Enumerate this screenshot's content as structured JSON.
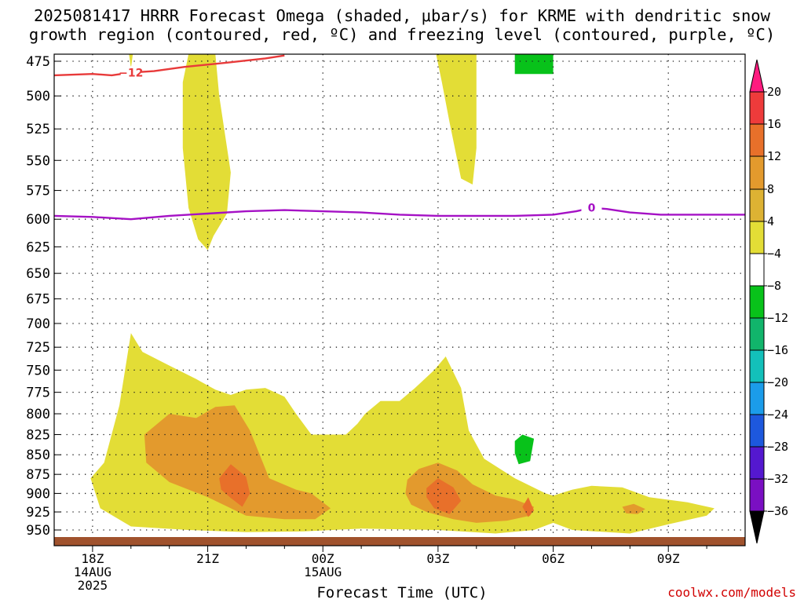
{
  "chart_data": {
    "type": "heatmap",
    "title": "2025081417 HRRR Forecast Omega (shaded, μbar/s) for KRME with dendritic snow\ngrowth region (contoured, red, ºC) and freezing level (contoured, purple, ºC)",
    "xlabel": "Forecast Time (UTC)",
    "ylabel": "",
    "credit": "coolwx.com/models",
    "y_ticks": [
      475,
      500,
      525,
      550,
      575,
      600,
      625,
      650,
      675,
      700,
      725,
      750,
      775,
      800,
      825,
      850,
      875,
      900,
      925,
      950
    ],
    "ylim": [
      965,
      470
    ],
    "y_scale": "log-pressure",
    "x_ticks": [
      {
        "hours": 1,
        "label": "18Z",
        "date": "14AUG",
        "year": "2025"
      },
      {
        "hours": 4,
        "label": "21Z",
        "date": "",
        "year": ""
      },
      {
        "hours": 7,
        "label": "00Z",
        "date": "15AUG",
        "year": ""
      },
      {
        "hours": 10,
        "label": "03Z",
        "date": "",
        "year": ""
      },
      {
        "hours": 13,
        "label": "06Z",
        "date": "",
        "year": ""
      },
      {
        "hours": 16,
        "label": "09Z",
        "date": "",
        "year": ""
      }
    ],
    "xlim": [
      0,
      18
    ],
    "grid": true,
    "colorbar": {
      "labels": [
        "20",
        "16",
        "12",
        "8",
        "4",
        "−4",
        "−8",
        "−12",
        "−16",
        "−20",
        "−24",
        "−28",
        "−32",
        "−36"
      ],
      "levels": [
        20,
        16,
        12,
        8,
        4,
        -4,
        -8,
        -12,
        -16,
        -20,
        -24,
        -28,
        -32,
        -36
      ],
      "colors": [
        "#ff1b7f",
        "#ee3b3b",
        "#e8702a",
        "#e39a2d",
        "#ddb233",
        "#e3dd36",
        "#ffffff",
        "#08c21a",
        "#11b56b",
        "#13c0ba",
        "#1b9cea",
        "#1d58dd",
        "#5418cf",
        "#7a0fc2",
        "#a30bc8",
        "#a7a7a7",
        "#000000"
      ]
    },
    "shading": [
      {
        "level": "4 to 8",
        "color": "#e3dd36",
        "regions": [
          {
            "points": [
              [
                0.95,
                880
              ],
              [
                1.3,
                860
              ],
              [
                1.7,
                790
              ],
              [
                2.0,
                710
              ],
              [
                2.3,
                730
              ],
              [
                3.0,
                745
              ],
              [
                3.7,
                760
              ],
              [
                4.2,
                772
              ],
              [
                4.6,
                778
              ],
              [
                5.0,
                772
              ],
              [
                5.5,
                770
              ],
              [
                6.0,
                780
              ],
              [
                6.3,
                800
              ],
              [
                6.7,
                825
              ],
              [
                7.6,
                825
              ],
              [
                7.9,
                812
              ],
              [
                8.1,
                800
              ],
              [
                8.5,
                785
              ],
              [
                9.0,
                785
              ],
              [
                9.4,
                770
              ],
              [
                9.9,
                750
              ],
              [
                10.2,
                735
              ],
              [
                10.6,
                770
              ],
              [
                10.8,
                820
              ],
              [
                11.2,
                855
              ],
              [
                12.0,
                880
              ],
              [
                12.8,
                900
              ],
              [
                13.0,
                903
              ],
              [
                13.5,
                895
              ],
              [
                14.0,
                890
              ],
              [
                14.8,
                892
              ],
              [
                15.5,
                905
              ],
              [
                16.5,
                912
              ],
              [
                17.2,
                920
              ],
              [
                17.0,
                930
              ],
              [
                16.0,
                942
              ],
              [
                15.0,
                955
              ],
              [
                13.5,
                950
              ],
              [
                13.0,
                940
              ],
              [
                12.5,
                950
              ],
              [
                11.5,
                955
              ],
              [
                10.0,
                950
              ],
              [
                8.0,
                948
              ],
              [
                6.5,
                952
              ],
              [
                5.0,
                953
              ],
              [
                3.5,
                950
              ],
              [
                2.0,
                945
              ],
              [
                1.2,
                920
              ]
            ]
          },
          {
            "points": [
              [
                3.35,
                490
              ],
              [
                3.5,
                470
              ],
              [
                4.2,
                470
              ],
              [
                4.3,
                500
              ],
              [
                4.6,
                560
              ],
              [
                4.5,
                595
              ],
              [
                4.15,
                615
              ],
              [
                4.0,
                628
              ],
              [
                3.75,
                618
              ],
              [
                3.5,
                590
              ],
              [
                3.35,
                540
              ]
            ]
          },
          {
            "points": [
              [
                9.95,
                470
              ],
              [
                11.0,
                470
              ],
              [
                11.0,
                500
              ],
              [
                11.0,
                540
              ],
              [
                10.9,
                570
              ],
              [
                10.6,
                565
              ],
              [
                10.3,
                520
              ],
              [
                10.1,
                490
              ]
            ]
          },
          {
            "points": [
              [
                1.95,
                470
              ],
              [
                2.05,
                470
              ],
              [
                2.0,
                480
              ]
            ]
          }
        ]
      },
      {
        "level": "8 to 12",
        "color": "#e39a2d",
        "regions": [
          {
            "points": [
              [
                2.35,
                825
              ],
              [
                3.0,
                800
              ],
              [
                3.7,
                805
              ],
              [
                4.2,
                792
              ],
              [
                4.7,
                790
              ],
              [
                5.1,
                820
              ],
              [
                5.6,
                880
              ],
              [
                6.3,
                895
              ],
              [
                6.7,
                900
              ],
              [
                7.2,
                920
              ],
              [
                6.8,
                935
              ],
              [
                6.0,
                935
              ],
              [
                5.0,
                930
              ],
              [
                4.0,
                905
              ],
              [
                3.0,
                885
              ],
              [
                2.4,
                860
              ]
            ]
          },
          {
            "points": [
              [
                9.2,
                882
              ],
              [
                9.5,
                868
              ],
              [
                10.0,
                860
              ],
              [
                10.5,
                870
              ],
              [
                10.9,
                888
              ],
              [
                11.5,
                903
              ],
              [
                12.0,
                908
              ],
              [
                12.5,
                918
              ],
              [
                12.4,
                930
              ],
              [
                11.8,
                937
              ],
              [
                11.0,
                940
              ],
              [
                10.4,
                935
              ],
              [
                9.7,
                925
              ],
              [
                9.3,
                915
              ],
              [
                9.15,
                900
              ]
            ]
          },
          {
            "points": [
              [
                14.8,
                918
              ],
              [
                15.1,
                914
              ],
              [
                15.4,
                921
              ],
              [
                15.2,
                928
              ],
              [
                14.9,
                927
              ]
            ]
          }
        ]
      },
      {
        "level": "12 to 16",
        "color": "#e8702a",
        "regions": [
          {
            "points": [
              [
                4.3,
                880
              ],
              [
                4.6,
                862
              ],
              [
                5.0,
                878
              ],
              [
                5.1,
                900
              ],
              [
                4.9,
                918
              ],
              [
                4.6,
                906
              ],
              [
                4.35,
                895
              ]
            ]
          },
          {
            "points": [
              [
                9.7,
                893
              ],
              [
                10.0,
                880
              ],
              [
                10.4,
                892
              ],
              [
                10.6,
                910
              ],
              [
                10.3,
                928
              ],
              [
                9.9,
                920
              ],
              [
                9.7,
                905
              ]
            ]
          },
          {
            "points": [
              [
                12.2,
                918
              ],
              [
                12.35,
                905
              ],
              [
                12.5,
                923
              ],
              [
                12.35,
                932
              ]
            ]
          }
        ]
      },
      {
        "level": "-8 to -4",
        "color": "#08c21a",
        "regions": [
          {
            "points": [
              [
                12.0,
                470
              ],
              [
                13.0,
                470
              ],
              [
                13.0,
                484
              ],
              [
                12.0,
                484
              ]
            ]
          },
          {
            "points": [
              [
                12.0,
                833
              ],
              [
                12.2,
                825
              ],
              [
                12.5,
                830
              ],
              [
                12.4,
                858
              ],
              [
                12.1,
                862
              ],
              [
                12.0,
                848
              ]
            ]
          }
        ]
      }
    ],
    "contours": [
      {
        "name": "dendritic snow growth region",
        "color": "#e83a3a",
        "label": "−12",
        "label_at": [
          2.0,
          483
        ],
        "points": [
          [
            0,
            485
          ],
          [
            1.0,
            484
          ],
          [
            1.5,
            485
          ],
          [
            2.0,
            483
          ],
          [
            2.6,
            482
          ],
          [
            3.4,
            479
          ],
          [
            4.5,
            476
          ],
          [
            5.5,
            473
          ],
          [
            6.0,
            471
          ]
        ]
      },
      {
        "name": "freezing level",
        "color": "#a511c5",
        "label": "0",
        "label_at": [
          14.0,
          590
        ],
        "points": [
          [
            0,
            597
          ],
          [
            1.0,
            598
          ],
          [
            2.0,
            600
          ],
          [
            3.0,
            597
          ],
          [
            4.0,
            595
          ],
          [
            5.0,
            593
          ],
          [
            6.0,
            592
          ],
          [
            7.0,
            593
          ],
          [
            8.0,
            594
          ],
          [
            9.0,
            596
          ],
          [
            10.0,
            597
          ],
          [
            11.0,
            597
          ],
          [
            12.0,
            597
          ],
          [
            13.0,
            596
          ],
          [
            13.6,
            593
          ],
          [
            14.0,
            590
          ],
          [
            14.4,
            591
          ],
          [
            15.0,
            594
          ],
          [
            15.8,
            596
          ],
          [
            16.5,
            596
          ],
          [
            18.0,
            596
          ]
        ]
      }
    ],
    "surface_color": "#a0522d"
  }
}
